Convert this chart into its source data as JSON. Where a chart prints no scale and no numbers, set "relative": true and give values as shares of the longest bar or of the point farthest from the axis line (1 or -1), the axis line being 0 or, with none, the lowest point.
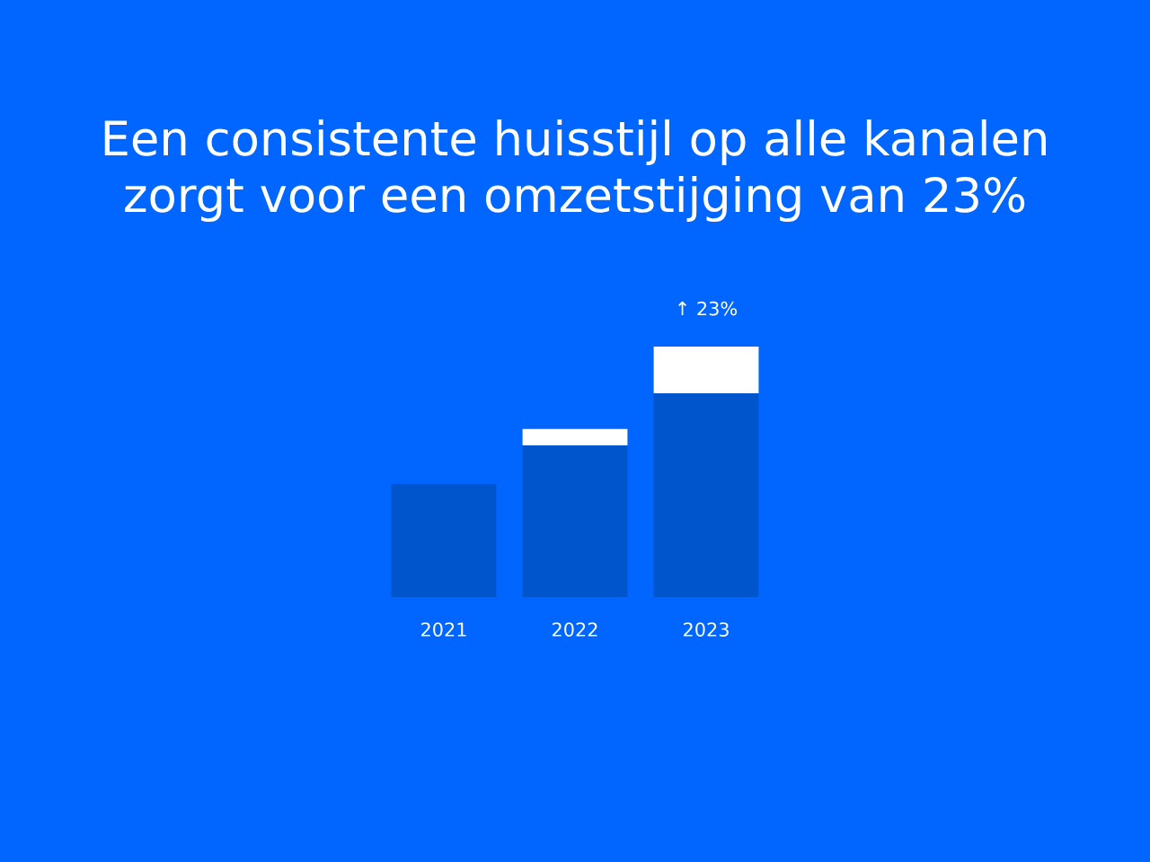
{
  "chart_data": {
    "type": "bar",
    "title": "Een consistente huisstijl op alle kanalen\nzorgt voor een omzetstijging van 23%",
    "categories": [
      "2021",
      "2022",
      "2023"
    ],
    "relative": true,
    "stacked": true,
    "legend": false,
    "grid": false,
    "series": [
      {
        "color": "#0055cc",
        "values": [
          0.452,
          0.606,
          0.814
        ]
      },
      {
        "color": "#ffffff",
        "values": [
          null,
          0.065,
          0.186
        ]
      }
    ],
    "annotations": [
      {
        "text": "↑ 23%",
        "x": "2023",
        "y": 1.0
      }
    ]
  }
}
